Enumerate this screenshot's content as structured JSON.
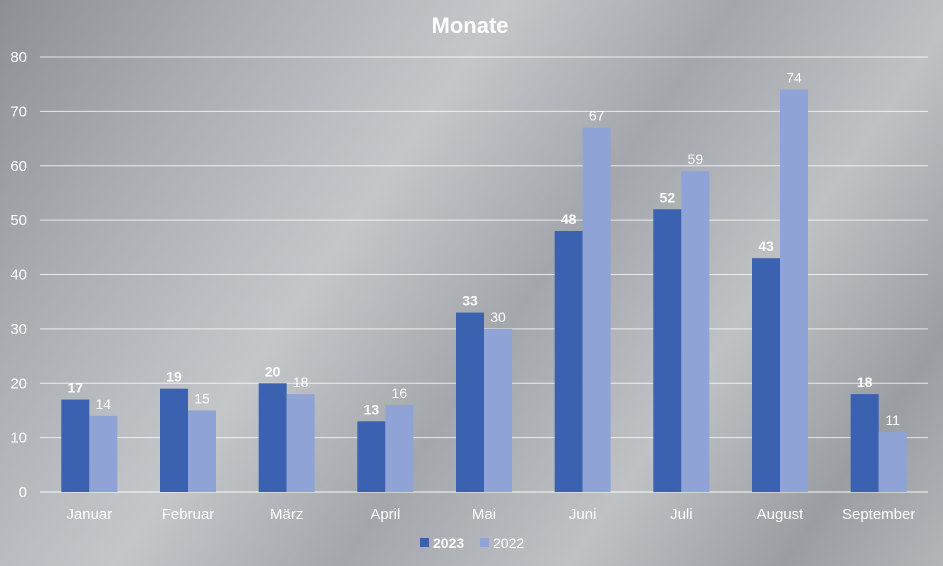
{
  "chart_data": {
    "type": "bar",
    "title": "Monate",
    "categories": [
      "Januar",
      "Februar",
      "März",
      "April",
      "Mai",
      "Juni",
      "Juli",
      "August",
      "September"
    ],
    "series": [
      {
        "name": "2023",
        "values": [
          17,
          19,
          20,
          13,
          33,
          48,
          52,
          43,
          18
        ],
        "color": "#3a62b0"
      },
      {
        "name": "2022",
        "values": [
          14,
          15,
          18,
          16,
          30,
          67,
          59,
          74,
          11
        ],
        "color": "#8fa3d6"
      }
    ],
    "ylim": [
      0,
      80
    ],
    "yticks": [
      0,
      10,
      20,
      30,
      40,
      50,
      60,
      70,
      80
    ],
    "grid": true,
    "legend": "bottom",
    "data_labels": true
  }
}
